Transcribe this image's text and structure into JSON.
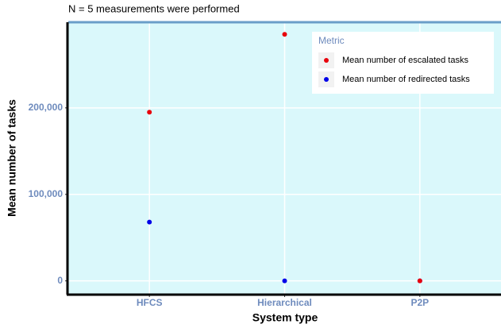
{
  "chart_data": {
    "type": "scatter",
    "subtitle": "N = 5 measurements were performed",
    "x_label": "System type",
    "y_label": "Mean number of tasks",
    "categories": [
      "HFCS",
      "Hierarchical",
      "P2P"
    ],
    "series": [
      {
        "name": "Mean number of escalated tasks",
        "color": "#e8000b",
        "values": [
          195000,
          285000,
          0
        ]
      },
      {
        "name": "Mean number of redirected tasks",
        "color": "#0000e8",
        "values": [
          68000,
          0,
          0
        ]
      }
    ],
    "ylim": [
      -15000,
      299000
    ],
    "yticks": [
      0,
      {
        "value": 100000,
        "label": "100,000"
      },
      {
        "value": 200000,
        "label": "200,000"
      }
    ],
    "legend_title": "Metric",
    "legend_position": "top-right",
    "grid": true
  }
}
